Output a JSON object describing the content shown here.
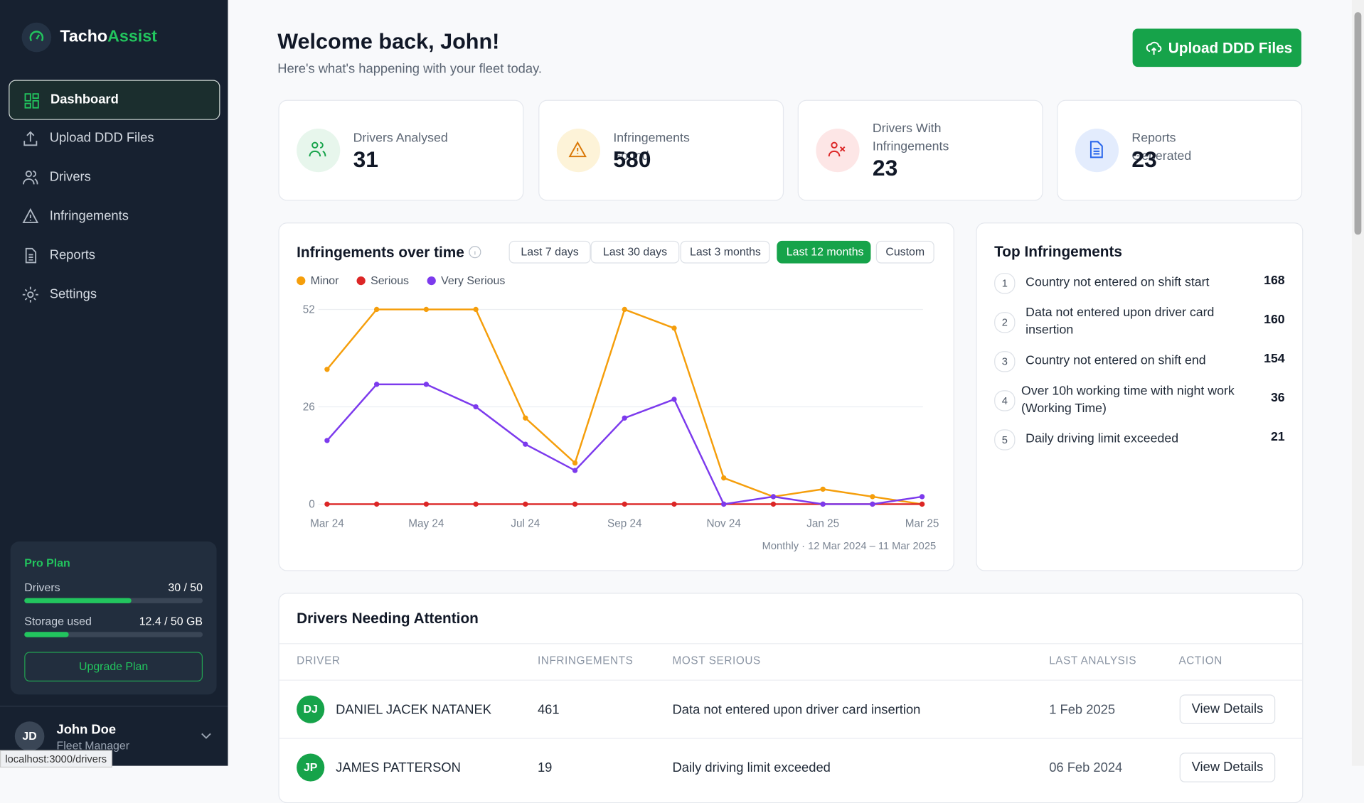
{
  "sidebar": {
    "logo": {
      "first": "Tacho",
      "second": "Assist"
    },
    "nav": [
      "Dashboard",
      "Upload DDD Files",
      "Drivers",
      "Infringements",
      "Reports",
      "Settings"
    ],
    "plan": {
      "name": "Pro Plan",
      "drivers": {
        "label": "Drivers",
        "value_label": "30 / 50",
        "used": 30,
        "limit": 50
      },
      "storage": {
        "label": "Storage used",
        "value_label": "12.4 / 50 GB",
        "used": 12.4,
        "limit": 50
      },
      "button": "Upgrade Plan"
    },
    "user": {
      "initials": "JD",
      "name": "John Doe",
      "role": "Fleet Manager"
    }
  },
  "header": {
    "title": "Welcome back, John!",
    "subtitle": "Here's what's happening with your fleet today.",
    "button": "Upload DDD Files"
  },
  "stats": [
    {
      "label": "Drivers Analysed",
      "value": 31
    },
    {
      "label": "Infringements Found",
      "value": 580
    },
    {
      "label": "Drivers With Infringements",
      "value": 23
    },
    {
      "label": "Reports Generated",
      "value": 23
    }
  ],
  "chart_data": {
    "type": "line",
    "title": "Infringements over time",
    "range_options": [
      "Last 7 days",
      "Last 30 days",
      "Last 3 months",
      "Last 12 months",
      "Custom"
    ],
    "active_range": 3,
    "categories": [
      "Mar 24",
      null,
      "May 24",
      null,
      "Jul 24",
      null,
      "Sep 24",
      null,
      "Nov 24",
      null,
      "Jan 25",
      null,
      "Mar 25"
    ],
    "series": [
      {
        "name": "Minor",
        "color": "#f59e0b",
        "values": [
          36,
          52,
          52,
          52,
          23,
          11,
          52,
          47,
          7,
          2,
          4,
          2,
          0
        ]
      },
      {
        "name": "Serious",
        "color": "#dc2626",
        "values": [
          0,
          0,
          0,
          0,
          0,
          0,
          0,
          0,
          0,
          0,
          0,
          0,
          0
        ]
      },
      {
        "name": "Very Serious",
        "color": "#7c3aed",
        "values": [
          17,
          32,
          32,
          26,
          16,
          9,
          23,
          28,
          0,
          2,
          0,
          0,
          2
        ]
      }
    ],
    "ylim": [
      0,
      52
    ],
    "yticks": [
      0,
      26,
      52
    ],
    "grid": true,
    "note": "Monthly · 12 Mar 2024 – 11 Mar 2025"
  },
  "top_infringements": {
    "title": "Top Infringements",
    "items": [
      {
        "rank": 1,
        "label": "Country not entered on shift start",
        "count": 168
      },
      {
        "rank": 2,
        "label": "Data not entered upon driver card insertion",
        "count": 160
      },
      {
        "rank": 3,
        "label": "Country not entered on shift end",
        "count": 154
      },
      {
        "rank": 4,
        "label": "Over 10h working time with night work (Working Time)",
        "count": 36
      },
      {
        "rank": 5,
        "label": "Daily driving limit exceeded",
        "count": 21
      }
    ]
  },
  "table": {
    "title": "Drivers Needing Attention",
    "columns": [
      "DRIVER",
      "INFRINGEMENTS",
      "MOST SERIOUS",
      "LAST ANALYSIS",
      "ACTION"
    ],
    "rows": [
      {
        "initials": "DJ",
        "driver": "DANIEL JACEK NATANEK",
        "infringements": 461,
        "most_serious": "Data not entered upon driver card insertion",
        "last_analysis": "1 Feb 2025",
        "action": "View Details"
      },
      {
        "initials": "JP",
        "driver": "JAMES PATTERSON",
        "infringements": 19,
        "most_serious": "Daily driving limit exceeded",
        "last_analysis": "06 Feb 2024",
        "action": "View Details"
      }
    ]
  },
  "status_bar": "localhost:3000/drivers"
}
